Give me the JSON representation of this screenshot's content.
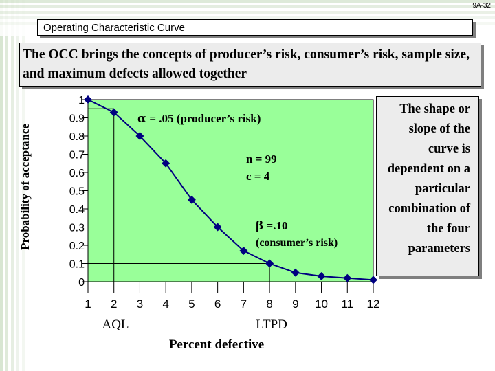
{
  "slide_number": "9A-32",
  "title": "Operating Characteristic Curve",
  "subtitle": "The OCC brings the concepts of producer’s risk, consumer’s risk, sample size, and maximum defects allowed together",
  "side_note": "The shape or slope of the curve is dependent on a particular combination of the four parameters",
  "colors": {
    "plot_background": "#99ff99",
    "curve": "#000080",
    "marker": "#000080"
  },
  "chart_data": {
    "type": "line",
    "ylabel": "Probability of acceptance",
    "xlabel": "Percent defective",
    "xlim": [
      1,
      12
    ],
    "ylim": [
      0,
      1
    ],
    "x_ticks": [
      "1",
      "2",
      "3",
      "4",
      "5",
      "6",
      "7",
      "8",
      "9",
      "10",
      "11",
      "12"
    ],
    "y_ticks": [
      "1",
      "0.9",
      "0.8",
      "0.7",
      "0.6",
      "0.5",
      "0.4",
      "0.3",
      "0.2",
      "0.1",
      "0"
    ],
    "x": [
      1,
      2,
      3,
      4,
      5,
      6,
      7,
      8,
      9,
      10,
      11,
      12
    ],
    "values": [
      1.0,
      0.93,
      0.8,
      0.65,
      0.45,
      0.3,
      0.17,
      0.1,
      0.05,
      0.03,
      0.02,
      0.01
    ],
    "annotations": [
      {
        "symbol": "α",
        "text": " = .05 (producer’s risk)"
      },
      {
        "text": "n = 99"
      },
      {
        "text": "c = 4"
      },
      {
        "symbol": "β",
        "text": " =.10"
      },
      {
        "text": "(consumer’s risk)"
      },
      {
        "text": "AQL"
      },
      {
        "text": "LTPD"
      }
    ],
    "guide_lines": [
      {
        "x": 2,
        "y": 0.95
      },
      {
        "x": 8,
        "y": 0.1
      }
    ]
  }
}
